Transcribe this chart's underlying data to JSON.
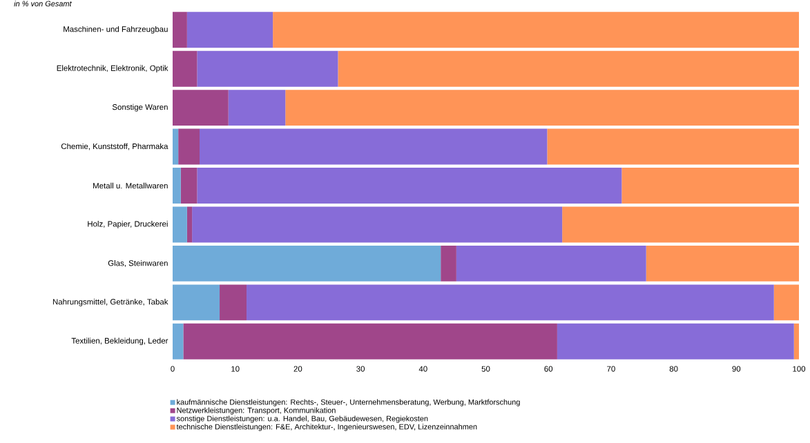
{
  "chart_data": {
    "type": "bar",
    "orientation": "horizontal",
    "stacked": true,
    "title": "in % von Gesamt",
    "categories": [
      "Maschinen- und Fahrzeugbau",
      "Elektrotechnik, Elektronik, Optik",
      "Sonstige Waren",
      "Chemie, Kunststoff, Pharmaka",
      "Metall u. Metallwaren",
      "Holz, Papier, Druckerei",
      "Glas, Steinwaren",
      "Nahrungsmittel, Getränke, Tabak",
      "Textilien, Bekleidung, Leder"
    ],
    "series": [
      {
        "name": "kaufmännische Dienstleistungen: Rechts-, Steuer-, Unternehmensberatung, Werbung, Marktforschung",
        "color": "#6fabd9",
        "values": [
          0,
          0,
          0,
          0.9,
          1.3,
          2.3,
          42.8,
          7.5,
          1.7
        ]
      },
      {
        "name": "Netzwerkleistungen: Transport, Kommunikation",
        "color": "#a0468a",
        "values": [
          2.3,
          3.9,
          8.9,
          3.4,
          2.6,
          0.8,
          2.5,
          4.3,
          59.7
        ]
      },
      {
        "name": "sonstige Dienstleistungen: u.a. Handel, Bau, Gebäudewesen, Regiekosten",
        "color": "#876cd8",
        "values": [
          13.7,
          22.5,
          9.1,
          55.5,
          67.8,
          59.1,
          30.3,
          84.2,
          37.8
        ]
      },
      {
        "name": "technische Dienstleistungen: F&E, Architektur-, Ingenieurswesen, EDV, Lizenzeinnahmen",
        "color": "#ff9457",
        "values": [
          84.0,
          73.6,
          82.0,
          40.2,
          28.3,
          37.8,
          24.4,
          4.0,
          0.8
        ]
      }
    ],
    "xlim": [
      0,
      100
    ],
    "xticks": [
      0,
      10,
      20,
      30,
      40,
      50,
      60,
      70,
      80,
      90,
      100
    ],
    "legend": "bottom"
  }
}
